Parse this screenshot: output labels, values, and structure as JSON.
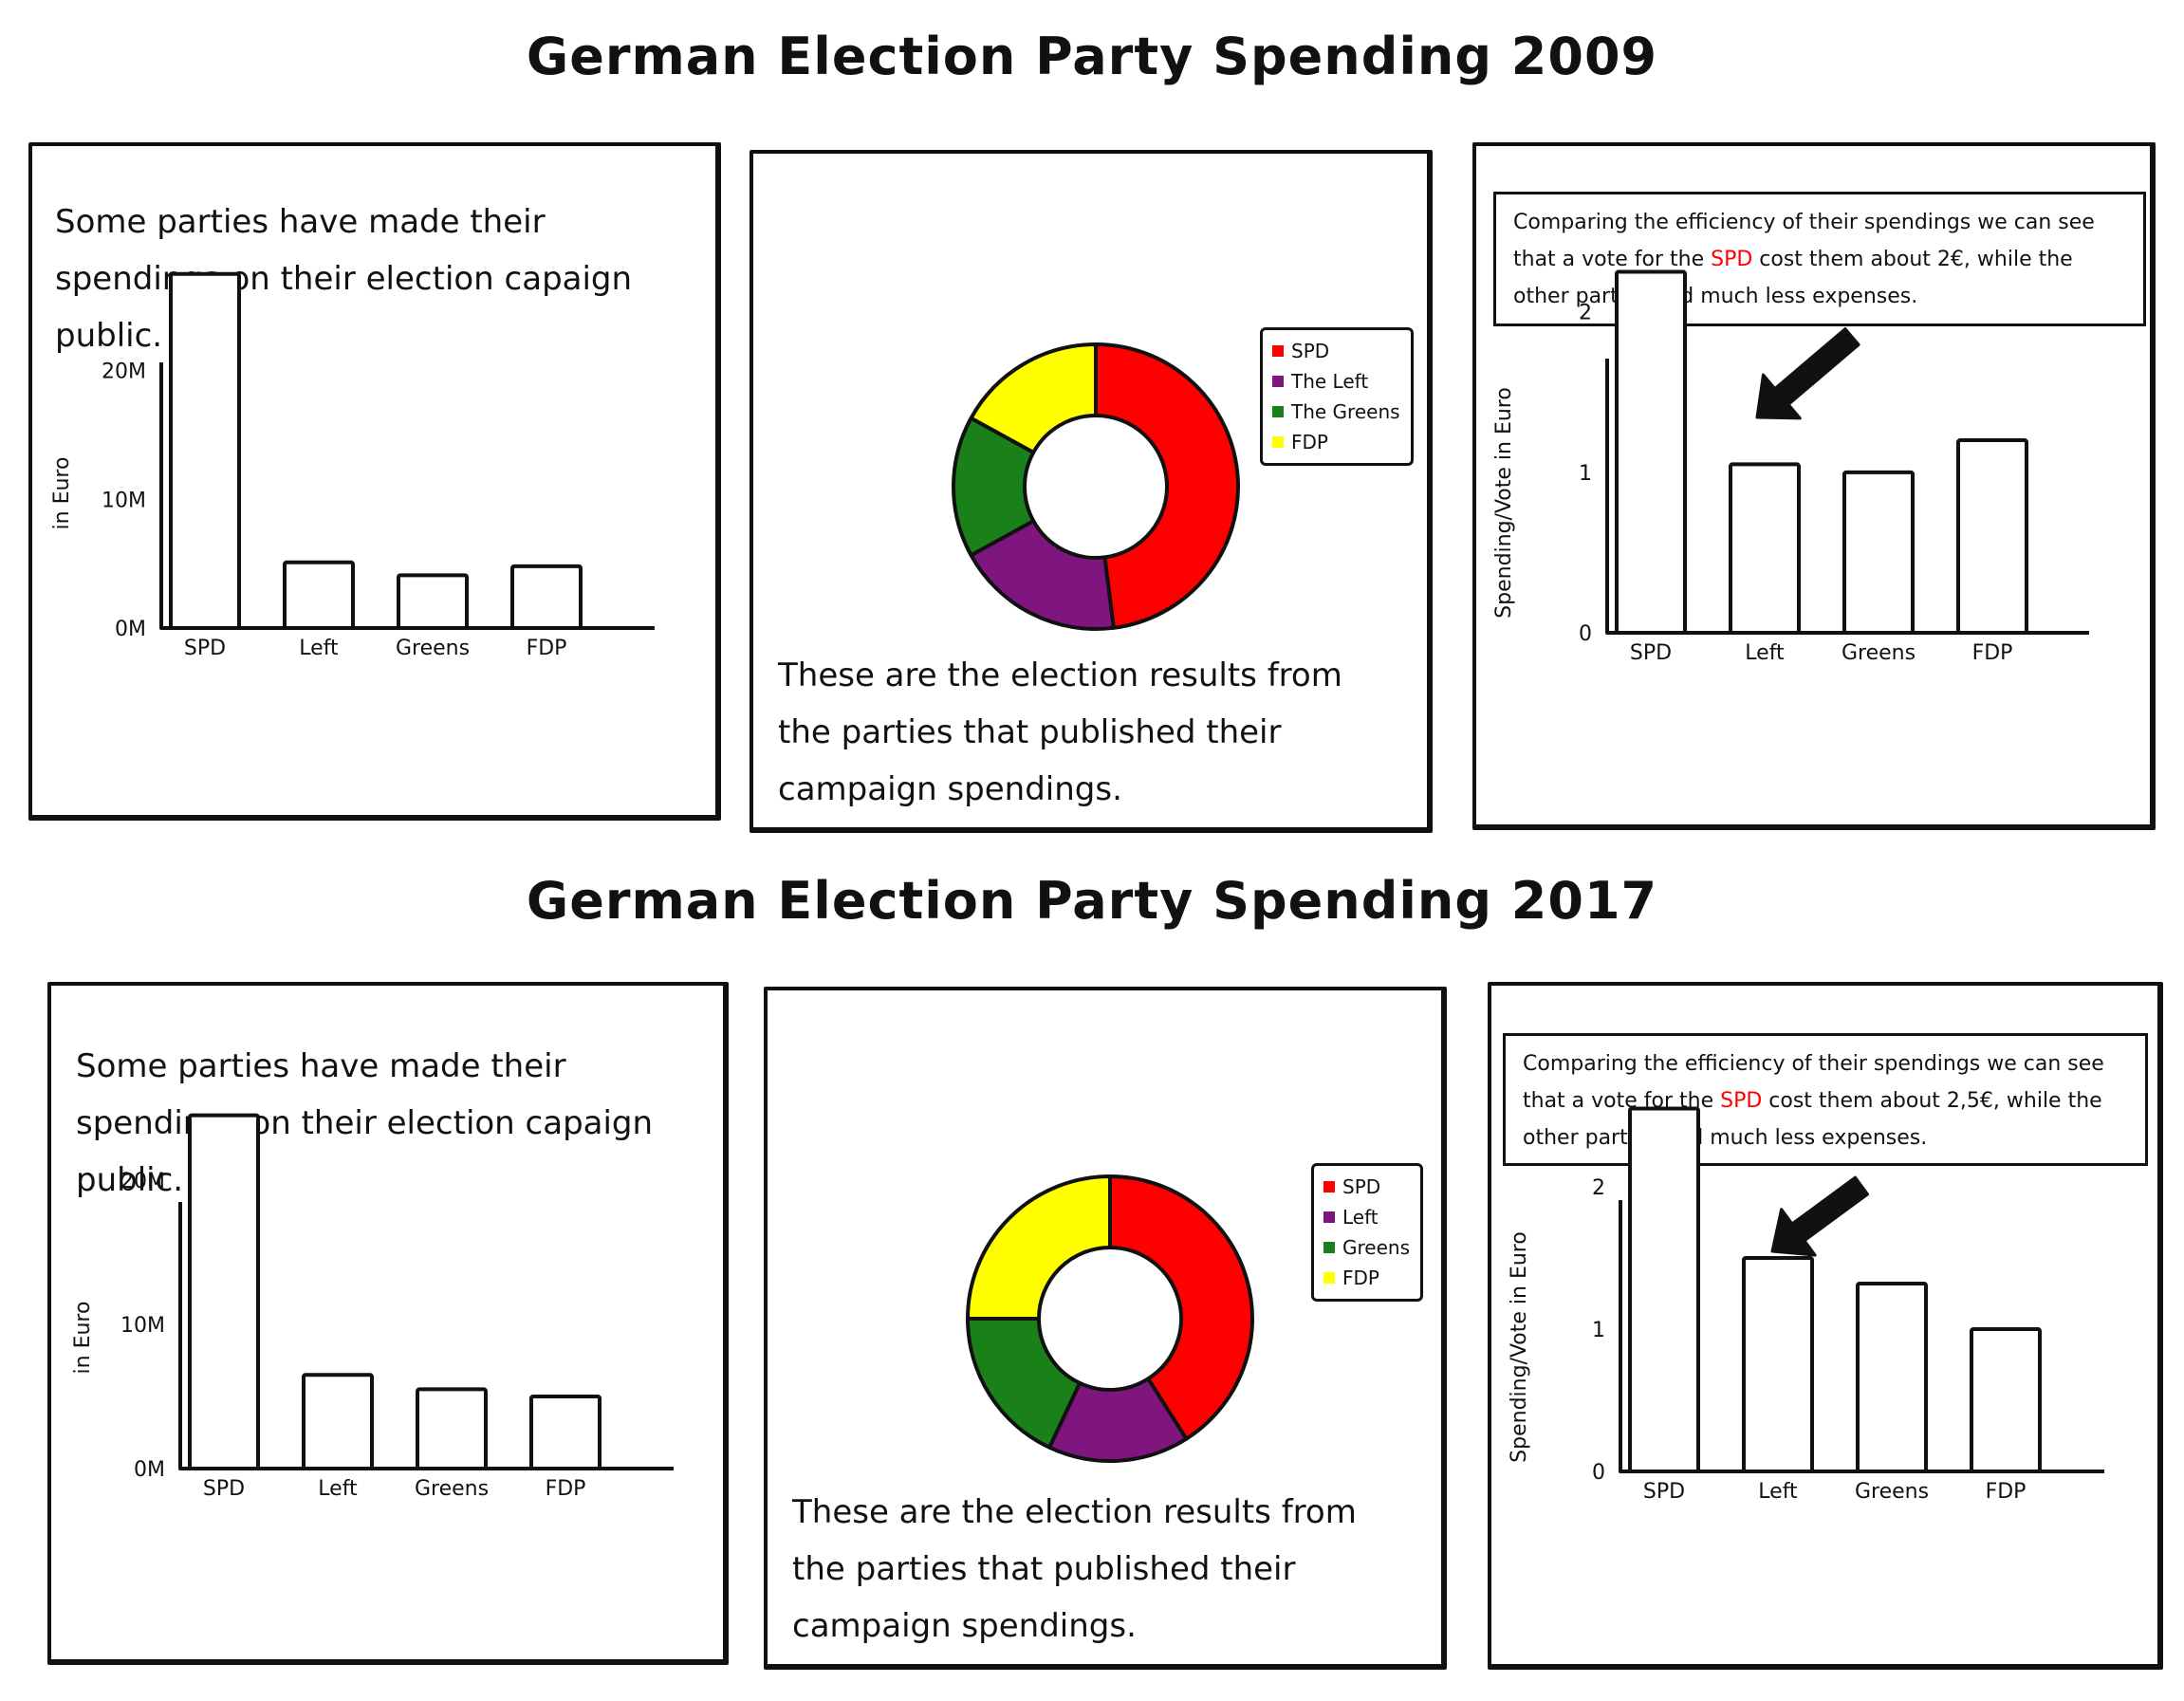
{
  "rows": [
    {
      "title": "German Election Party Spending 2009",
      "spending_panel": {
        "text": "Some parties have made their spendings on their election capaign public."
      },
      "results_panel": {
        "text": "These are the election results from the parties that published their campaign spendings."
      },
      "efficiency_panel": {
        "note_before": "Comparing the efficiency of their spendings we can see that a vote for the ",
        "note_highlight": "SPD",
        "note_after": " cost them about 2€, while the other parties had much less expenses."
      }
    },
    {
      "title": "German Election Party Spending 2017",
      "spending_panel": {
        "text": "Some parties have made their spendings on their election capaign public."
      },
      "results_panel": {
        "text": "These are the election results from the parties that published their campaign spendings."
      },
      "efficiency_panel": {
        "note_before": "Comparing the efficiency of their spendings we can see that a vote for the ",
        "note_highlight": "SPD",
        "note_after": " cost them about 2,5€, while the other parties had much less expenses."
      }
    }
  ],
  "colors": {
    "SPD": "#ff0000",
    "Left": "#7f167f",
    "Greens": "#1a801a",
    "FDP": "#ffff00",
    "highlight": "#ff0000",
    "ink": "#111111"
  },
  "chart_data": [
    {
      "type": "bar",
      "categories": [
        "SPD",
        "Left",
        "Greens",
        "FDP"
      ],
      "values": [
        27.5,
        5.1,
        4.1,
        4.8
      ],
      "ylabel": "in Euro",
      "yticks": [
        "0M",
        "10M",
        "20M"
      ],
      "ytick_values": [
        0,
        10,
        20
      ],
      "ylim": [
        0,
        28
      ]
    },
    {
      "type": "pie",
      "style": "donut",
      "labels": [
        "SPD",
        "The Left",
        "The Greens",
        "FDP"
      ],
      "values": [
        48,
        19,
        16,
        17
      ]
    },
    {
      "type": "bar",
      "categories": [
        "SPD",
        "Left",
        "Greens",
        "FDP"
      ],
      "values": [
        2.25,
        1.05,
        1.0,
        1.2
      ],
      "ylabel": "Spending/Vote in Euro",
      "yticks": [
        "0",
        "1",
        "2"
      ],
      "ytick_values": [
        0,
        1,
        2
      ],
      "ylim": [
        0,
        2.3
      ]
    },
    {
      "type": "bar",
      "categories": [
        "SPD",
        "Left",
        "Greens",
        "FDP"
      ],
      "values": [
        24.5,
        6.5,
        5.5,
        5.0
      ],
      "ylabel": "in Euro",
      "yticks": [
        "0M",
        "10M",
        "20M"
      ],
      "ytick_values": [
        0,
        10,
        20
      ],
      "ylim": [
        0,
        25
      ]
    },
    {
      "type": "pie",
      "style": "donut",
      "labels": [
        "SPD",
        "Left",
        "Greens",
        "FDP"
      ],
      "values": [
        41,
        16,
        18,
        25
      ]
    },
    {
      "type": "bar",
      "categories": [
        "SPD",
        "Left",
        "Greens",
        "FDP"
      ],
      "values": [
        2.55,
        1.5,
        1.32,
        1.0
      ],
      "ylabel": "Spending/Vote in Euro",
      "yticks": [
        "0",
        "1",
        "2"
      ],
      "ytick_values": [
        0,
        1,
        2
      ],
      "ylim": [
        0,
        2.6
      ]
    }
  ]
}
